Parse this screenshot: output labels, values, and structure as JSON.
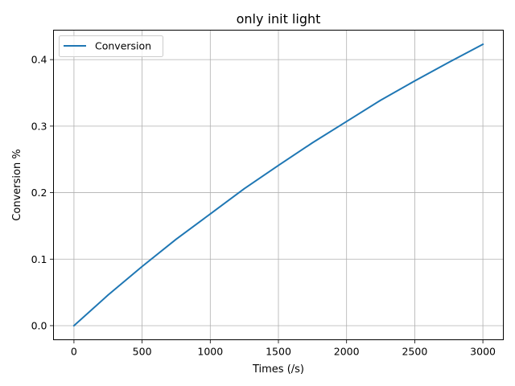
{
  "chart_data": {
    "type": "line",
    "title": "only init light",
    "xlabel": "Times (/s)",
    "ylabel": "Conversion %",
    "xlim": [
      -150,
      3150
    ],
    "ylim": [
      -0.0212,
      0.4443
    ],
    "xticks": [
      0,
      500,
      1000,
      1500,
      2000,
      2500,
      3000
    ],
    "yticks": [
      0.0,
      0.1,
      0.2,
      0.3,
      0.4
    ],
    "xtick_labels": [
      "0",
      "500",
      "1000",
      "1500",
      "2000",
      "2500",
      "3000"
    ],
    "ytick_labels": [
      "0.0",
      "0.1",
      "0.2",
      "0.3",
      "0.4"
    ],
    "grid": true,
    "legend_position": "top-left",
    "series": [
      {
        "name": "Conversion",
        "color": "#1f77b4",
        "x": [
          0,
          250,
          500,
          750,
          1000,
          1250,
          1500,
          1750,
          2000,
          2250,
          2500,
          2750,
          3000
        ],
        "y": [
          0.0,
          0.046,
          0.089,
          0.13,
          0.168,
          0.206,
          0.241,
          0.275,
          0.307,
          0.339,
          0.368,
          0.396,
          0.423
        ]
      }
    ]
  }
}
